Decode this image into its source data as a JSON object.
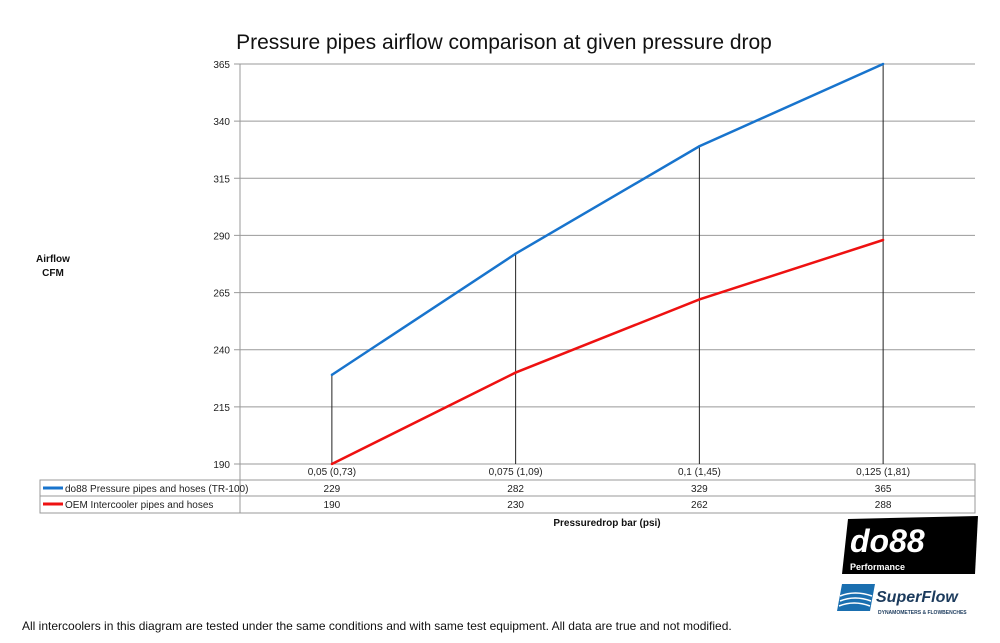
{
  "chart_data": {
    "type": "line",
    "title": "Pressure pipes airflow comparison at given pressure drop",
    "ylabel": [
      "Airflow",
      "CFM"
    ],
    "xlabel": "Pressuredrop bar (psi)",
    "categories": [
      "0,05 (0,73)",
      "0,075 (1,09)",
      "0,1 (1,45)",
      "0,125 (1,81)"
    ],
    "ylim": [
      190,
      365
    ],
    "yticks": [
      190,
      215,
      240,
      265,
      290,
      315,
      340,
      365
    ],
    "grid": true,
    "drop_lines": true,
    "legend": "data-table",
    "series": [
      {
        "name": "do88 Pressure pipes and hoses (TR-100)",
        "color": "#1874cd",
        "values": [
          229,
          282,
          329,
          365
        ]
      },
      {
        "name": "OEM Intercooler pipes and hoses",
        "color": "#ee1111",
        "values": [
          190,
          230,
          262,
          288
        ]
      }
    ]
  },
  "footer": "All intercoolers in this diagram are tested under the same conditions and with same test equipment. All data are true and not modified.",
  "logos": {
    "do88": "do88",
    "do88_sub": "Performance",
    "superflow": "SuperFlow",
    "superflow_sub": "DYNAMOMETERS & FLOWBENCHES"
  }
}
